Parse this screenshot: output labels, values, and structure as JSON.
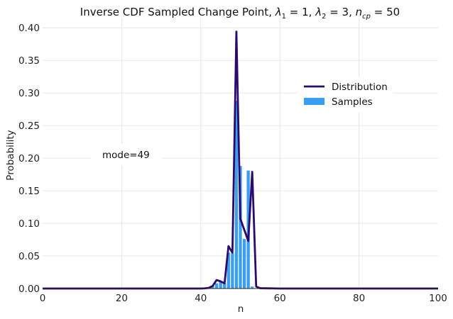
{
  "chart_data": {
    "type": "bar",
    "title": {
      "prefix": "Inverse CDF Sampled Change Point, ",
      "l1_sym": "λ",
      "l1_sub": "1",
      "l1_val": " = 1, ",
      "l2_sym": "λ",
      "l2_sub": "2",
      "l2_val": " = 3, ",
      "ncp_sym": "n",
      "ncp_sub": "cp",
      "ncp_val": " = 50"
    },
    "xlabel": "n",
    "ylabel": "Probability",
    "xlim": [
      0,
      100
    ],
    "ylim": [
      0,
      0.41
    ],
    "xticks": [
      0,
      20,
      40,
      60,
      80,
      100
    ],
    "xtick_labels": [
      "0",
      "20",
      "40",
      "60",
      "80",
      "100"
    ],
    "yticks": [
      0.0,
      0.05,
      0.1,
      0.15,
      0.2,
      0.25,
      0.3,
      0.35,
      0.4
    ],
    "ytick_labels": [
      "0.00",
      "0.05",
      "0.10",
      "0.15",
      "0.20",
      "0.25",
      "0.30",
      "0.35",
      "0.40"
    ],
    "grid": true,
    "legend_position": "upper-right",
    "annotation": "mode=49",
    "series": [
      {
        "name": "Distribution",
        "kind": "line",
        "color": "#2c0a6b",
        "x": [
          0,
          40,
          41,
          42,
          43,
          44,
          45,
          46,
          47,
          48,
          49,
          50,
          51,
          52,
          53,
          54,
          55,
          60,
          100
        ],
        "y": [
          0,
          0,
          0.0003,
          0.001,
          0.004,
          0.013,
          0.011,
          0.008,
          0.065,
          0.055,
          0.394,
          0.107,
          0.09,
          0.073,
          0.179,
          0.003,
          0.0005,
          0,
          0
        ]
      },
      {
        "name": "Samples",
        "kind": "bar",
        "color": "#3a9ff0",
        "x": [
          43,
          44,
          45,
          46,
          47,
          48,
          49,
          50,
          51,
          52,
          53
        ],
        "y": [
          0.004,
          0.008,
          0.011,
          0.008,
          0.055,
          0.054,
          0.288,
          0.188,
          0.076,
          0.181,
          0.003
        ]
      }
    ]
  }
}
